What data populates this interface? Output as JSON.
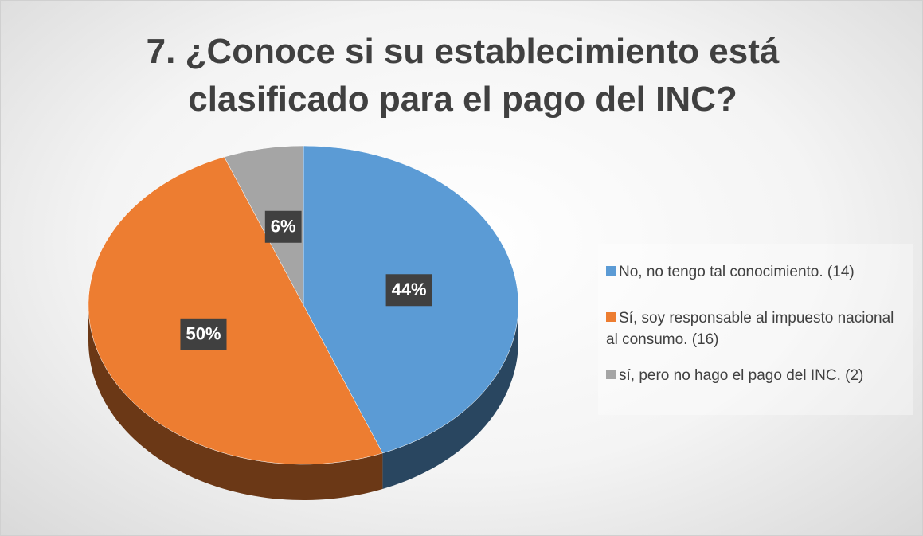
{
  "chart_data": {
    "type": "pie",
    "title": "7. ¿Conoce si su establecimiento está clasificado para el pago del INC?",
    "categories": [
      "No, no tengo tal conocimiento.  (14)",
      "Sí, soy responsable al impuesto nacional al consumo. (16)",
      "sí, pero no hago el pago del INC. (2)"
    ],
    "values": [
      44,
      50,
      6
    ],
    "value_labels": [
      "44%",
      "50%",
      "6%"
    ],
    "colors": [
      "#5b9bd5",
      "#ed7d31",
      "#a5a5a5"
    ],
    "legend": "right"
  }
}
